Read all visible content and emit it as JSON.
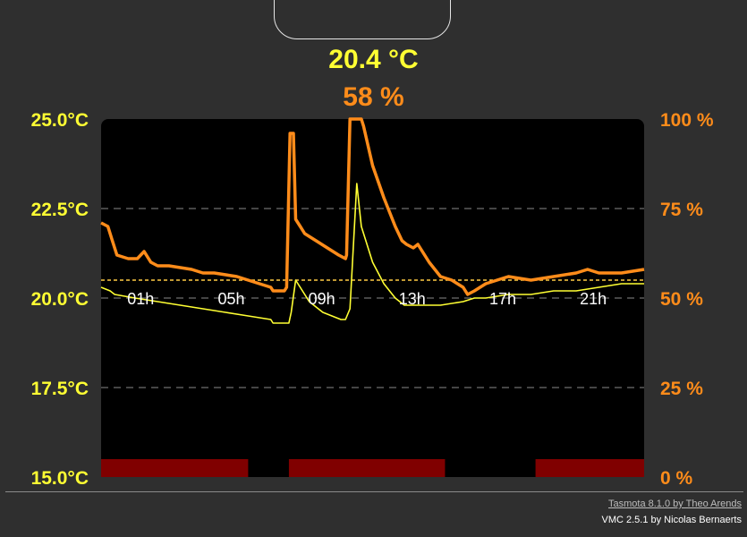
{
  "readings": {
    "temperature": "20.4 °C",
    "humidity": "58 %"
  },
  "colors": {
    "temperature": "#ffff33",
    "humidity": "#ff8c1a",
    "setpoint": "#ffcc44",
    "schedule": "#800000",
    "plot_bg": "#000000",
    "page_bg": "#2f2f2f"
  },
  "chart_data": {
    "type": "line",
    "x_range": [
      0,
      24
    ],
    "x_ticks": [
      {
        "value": 1,
        "label": "01h"
      },
      {
        "value": 5,
        "label": "05h"
      },
      {
        "value": 9,
        "label": "09h"
      },
      {
        "value": 13,
        "label": "13h"
      },
      {
        "value": 17,
        "label": "17h"
      },
      {
        "value": 21,
        "label": "21h"
      }
    ],
    "y_left": {
      "range": [
        15,
        25
      ],
      "ticks": [
        {
          "value": 15,
          "label": "15.0°C"
        },
        {
          "value": 17.5,
          "label": "17.5°C"
        },
        {
          "value": 20,
          "label": "20.0°C"
        },
        {
          "value": 22.5,
          "label": "22.5°C"
        },
        {
          "value": 25,
          "label": "25.0°C"
        }
      ]
    },
    "y_right": {
      "range": [
        0,
        100
      ],
      "ticks": [
        {
          "value": 0,
          "label": "0 %"
        },
        {
          "value": 25,
          "label": "25 %"
        },
        {
          "value": 50,
          "label": "50 %"
        },
        {
          "value": 75,
          "label": "75 %"
        },
        {
          "value": 100,
          "label": "100 %"
        }
      ]
    },
    "grid": "dashed-horizontal",
    "setpoint_humidity": 55,
    "series": [
      {
        "axis": "left",
        "x": [
          0,
          0.4,
          0.6,
          1.5,
          2.5,
          3.5,
          4.5,
          5.5,
          6.5,
          7.5,
          7.6,
          8.3,
          8.4,
          8.6,
          9.2,
          9.8,
          10.2,
          10.6,
          10.8,
          11,
          11.3,
          11.5,
          12,
          12.5,
          13,
          13.4,
          14,
          15,
          16,
          16.5,
          17,
          18,
          19,
          20,
          21,
          22,
          23,
          24
        ],
        "y": [
          20.3,
          20.2,
          20.1,
          20.0,
          19.9,
          19.8,
          19.7,
          19.6,
          19.5,
          19.4,
          19.3,
          19.3,
          19.6,
          20.5,
          19.9,
          19.6,
          19.5,
          19.4,
          19.4,
          19.7,
          23.2,
          22.0,
          21.0,
          20.4,
          20.0,
          19.8,
          19.8,
          19.8,
          19.9,
          20.0,
          20.0,
          20.1,
          20.1,
          20.2,
          20.2,
          20.3,
          20.4,
          20.4
        ]
      },
      {
        "axis": "right",
        "x": [
          0,
          0.3,
          0.5,
          0.7,
          1.2,
          1.6,
          1.9,
          2.2,
          2.5,
          3,
          4,
          4.5,
          5,
          6,
          6.5,
          7.5,
          7.6,
          8.1,
          8.2,
          8.35,
          8.5,
          8.6,
          8.8,
          9,
          9.5,
          10,
          10.5,
          10.8,
          10.85,
          11.0,
          11.2,
          11.5,
          11.6,
          12,
          12.5,
          13,
          13.3,
          13.5,
          13.8,
          14,
          14.5,
          15,
          15.5,
          16,
          16.2,
          16.5,
          17,
          17.5,
          18,
          19,
          20,
          21,
          21.5,
          22,
          23,
          24
        ],
        "y": [
          71,
          70,
          66,
          62,
          61,
          61,
          63,
          60,
          59,
          59,
          58,
          57,
          57,
          56,
          55,
          53,
          52,
          52,
          53,
          96,
          96,
          72,
          70,
          68,
          66,
          64,
          62,
          61,
          62,
          100,
          100,
          100,
          98,
          87,
          78,
          70,
          66,
          65,
          64,
          65,
          60,
          56,
          55,
          53,
          51,
          52,
          54,
          55,
          56,
          55,
          56,
          57,
          58,
          57,
          57,
          58
        ]
      }
    ],
    "schedule_bands": [
      [
        0,
        6.5
      ],
      [
        8.3,
        15.2
      ],
      [
        19.2,
        24
      ]
    ]
  },
  "footer": {
    "tasmota_credit": "Tasmota 8.1.0 by Theo Arends",
    "vmc_credit": "VMC 2.5.1 by Nicolas Bernaerts"
  }
}
